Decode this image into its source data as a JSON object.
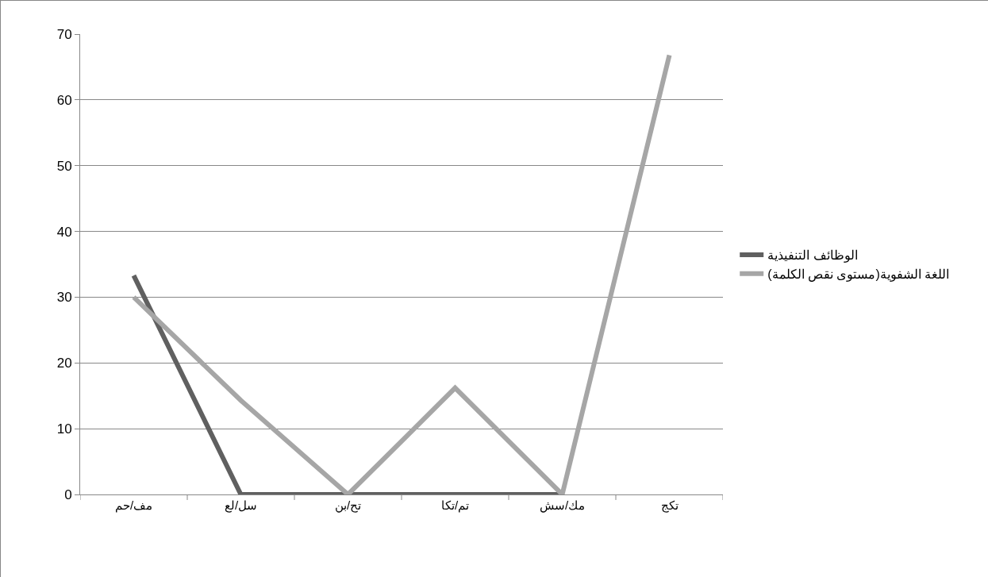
{
  "chart_data": {
    "type": "line",
    "categories": [
      "مف/حم",
      "سل/لع",
      "تح/بن",
      "تم/تكا",
      "مك/سش",
      "تكج"
    ],
    "series": [
      {
        "name": "الوظائف التنفيذية",
        "color": "#606060",
        "values": [
          33.3,
          0,
          0,
          0,
          0,
          null
        ]
      },
      {
        "name": "اللغة الشفوية(مستوى نقص الكلمة)",
        "color": "#a6a6a6",
        "values": [
          30,
          14.3,
          0,
          16.2,
          0,
          66.8
        ]
      }
    ],
    "ylim": [
      0,
      70
    ],
    "yticks": [
      0,
      10,
      20,
      30,
      40,
      50,
      60,
      70
    ],
    "grid": "y",
    "legend": "right",
    "marker": "none",
    "line_style": "solid"
  }
}
